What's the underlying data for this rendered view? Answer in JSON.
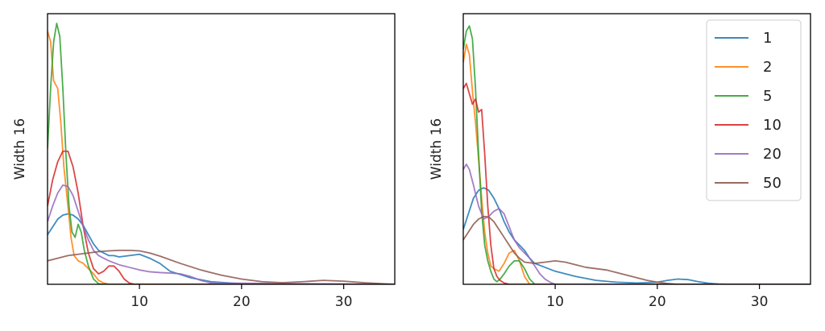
{
  "chart_data": [
    {
      "type": "line",
      "ylabel": "Width 16",
      "xlim": [
        1,
        35
      ],
      "ylim": [
        0,
        1.0
      ],
      "xticks": [
        10,
        20,
        30
      ],
      "xtick_labels": [
        "10",
        "20",
        "30"
      ],
      "yticks_shown": false,
      "legend": false,
      "series": [
        {
          "name": "1",
          "color": "#1f77b4",
          "x": [
            1,
            1.5,
            2,
            2.5,
            3,
            3.5,
            4,
            4.5,
            5,
            5.5,
            6,
            6.5,
            7,
            7.5,
            8,
            9,
            10,
            11,
            12,
            13,
            15,
            17,
            20,
            25,
            30,
            35
          ],
          "y": [
            0.19,
            0.22,
            0.25,
            0.265,
            0.27,
            0.265,
            0.25,
            0.225,
            0.19,
            0.155,
            0.13,
            0.12,
            0.11,
            0.11,
            0.105,
            0.11,
            0.115,
            0.1,
            0.08,
            0.05,
            0.025,
            0.01,
            0.002,
            0,
            0,
            0
          ]
        },
        {
          "name": "2",
          "color": "#ff7f0e",
          "x": [
            1,
            1.3,
            1.6,
            2,
            2.3,
            2.6,
            3,
            3.3,
            3.6,
            4,
            4.5,
            5,
            5.5,
            6,
            6.5,
            7,
            8,
            35
          ],
          "y": [
            0.97,
            0.93,
            0.78,
            0.75,
            0.62,
            0.45,
            0.3,
            0.18,
            0.11,
            0.09,
            0.08,
            0.06,
            0.04,
            0.015,
            0.005,
            0,
            0,
            0
          ]
        },
        {
          "name": "5",
          "color": "#2ca02c",
          "x": [
            1,
            1.3,
            1.6,
            1.9,
            2.2,
            2.5,
            2.8,
            3.1,
            3.4,
            3.7,
            4,
            4.3,
            4.6,
            5,
            5.5,
            6,
            6.5,
            35
          ],
          "y": [
            0.52,
            0.75,
            0.93,
            1.0,
            0.95,
            0.75,
            0.5,
            0.3,
            0.2,
            0.18,
            0.23,
            0.2,
            0.13,
            0.07,
            0.02,
            0.002,
            0,
            0
          ]
        },
        {
          "name": "10",
          "color": "#d62728",
          "x": [
            1,
            1.5,
            2,
            2.5,
            3,
            3.5,
            4,
            4.5,
            5,
            5.5,
            6,
            6.5,
            7,
            7.5,
            8,
            8.5,
            9,
            9.5,
            35
          ],
          "y": [
            0.3,
            0.4,
            0.47,
            0.51,
            0.51,
            0.45,
            0.35,
            0.22,
            0.12,
            0.06,
            0.04,
            0.05,
            0.07,
            0.07,
            0.05,
            0.02,
            0.005,
            0,
            0
          ]
        },
        {
          "name": "20",
          "color": "#9467bd",
          "x": [
            1,
            1.5,
            2,
            2.5,
            3,
            3.5,
            4,
            4.5,
            5,
            5.5,
            6,
            7,
            8,
            9,
            10,
            11,
            12,
            13,
            14,
            15,
            16,
            17,
            35
          ],
          "y": [
            0.24,
            0.3,
            0.35,
            0.38,
            0.375,
            0.34,
            0.28,
            0.22,
            0.17,
            0.13,
            0.11,
            0.09,
            0.075,
            0.065,
            0.055,
            0.048,
            0.045,
            0.043,
            0.04,
            0.03,
            0.015,
            0.005,
            0
          ]
        },
        {
          "name": "50",
          "color": "#8c564b",
          "x": [
            1,
            2,
            3,
            4,
            5,
            6,
            7,
            8,
            9,
            10,
            11,
            12,
            14,
            16,
            18,
            20,
            22,
            24,
            26,
            28,
            30,
            32,
            34,
            35
          ],
          "y": [
            0.09,
            0.1,
            0.11,
            0.115,
            0.12,
            0.125,
            0.128,
            0.13,
            0.13,
            0.128,
            0.12,
            0.108,
            0.08,
            0.055,
            0.035,
            0.02,
            0.01,
            0.006,
            0.01,
            0.015,
            0.012,
            0.006,
            0.002,
            0
          ]
        }
      ]
    },
    {
      "type": "line",
      "ylabel": "Width 16",
      "xlim": [
        1,
        35
      ],
      "ylim": [
        0,
        1.0
      ],
      "xticks": [
        10,
        20,
        30
      ],
      "xtick_labels": [
        "10",
        "20",
        "30"
      ],
      "yticks_shown": false,
      "legend": true,
      "legend_position": "top-right",
      "series": [
        {
          "name": "1",
          "color": "#1f77b4",
          "x": [
            1,
            1.5,
            2,
            2.5,
            3,
            3.5,
            4,
            4.5,
            5,
            5.5,
            6,
            6.5,
            7,
            7.5,
            8,
            9,
            10,
            11,
            12,
            14,
            16,
            18,
            20,
            21,
            22,
            23,
            24,
            25,
            26,
            27,
            28,
            35
          ],
          "y": [
            0.21,
            0.27,
            0.33,
            0.36,
            0.37,
            0.36,
            0.33,
            0.29,
            0.24,
            0.2,
            0.17,
            0.15,
            0.13,
            0.1,
            0.08,
            0.065,
            0.05,
            0.04,
            0.03,
            0.015,
            0.008,
            0.005,
            0.008,
            0.015,
            0.02,
            0.018,
            0.01,
            0.004,
            0.001,
            0,
            0,
            0
          ]
        },
        {
          "name": "2",
          "color": "#ff7f0e",
          "x": [
            1,
            1.3,
            1.6,
            1.9,
            2.2,
            2.5,
            2.8,
            3.1,
            3.4,
            3.7,
            4,
            4.5,
            5,
            5.5,
            6,
            6.5,
            7,
            7.5,
            35
          ],
          "y": [
            0.85,
            0.92,
            0.88,
            0.74,
            0.62,
            0.48,
            0.33,
            0.2,
            0.12,
            0.07,
            0.06,
            0.05,
            0.08,
            0.12,
            0.13,
            0.09,
            0.03,
            0,
            0
          ]
        },
        {
          "name": "5",
          "color": "#2ca02c",
          "x": [
            1,
            1.3,
            1.6,
            1.9,
            2.2,
            2.5,
            2.8,
            3.1,
            3.4,
            3.7,
            4,
            4.3,
            4.6,
            5,
            5.5,
            6,
            6.5,
            7,
            7.5,
            8,
            35
          ],
          "y": [
            0.9,
            0.97,
            0.99,
            0.94,
            0.75,
            0.5,
            0.28,
            0.15,
            0.09,
            0.05,
            0.02,
            0.01,
            0.02,
            0.04,
            0.07,
            0.09,
            0.09,
            0.06,
            0.02,
            0,
            0
          ]
        },
        {
          "name": "10",
          "color": "#d62728",
          "x": [
            1,
            1.3,
            1.6,
            1.9,
            2.2,
            2.5,
            2.8,
            3.1,
            3.4,
            3.7,
            4,
            4.3,
            4.6,
            5,
            5.5,
            6,
            35
          ],
          "y": [
            0.75,
            0.77,
            0.73,
            0.69,
            0.71,
            0.66,
            0.67,
            0.5,
            0.3,
            0.15,
            0.06,
            0.03,
            0.015,
            0.005,
            0,
            0,
            0
          ]
        },
        {
          "name": "20",
          "color": "#9467bd",
          "x": [
            1,
            1.3,
            1.6,
            2,
            2.5,
            3,
            3.5,
            4,
            4.5,
            5,
            5.5,
            6,
            6.5,
            7,
            7.5,
            8,
            8.5,
            9,
            9.5,
            10,
            35
          ],
          "y": [
            0.44,
            0.46,
            0.44,
            0.38,
            0.3,
            0.25,
            0.26,
            0.28,
            0.29,
            0.27,
            0.22,
            0.17,
            0.14,
            0.12,
            0.1,
            0.07,
            0.04,
            0.02,
            0.008,
            0,
            0
          ]
        },
        {
          "name": "50",
          "color": "#8c564b",
          "x": [
            1,
            1.5,
            2,
            2.5,
            3,
            3.5,
            4,
            4.5,
            5,
            5.5,
            6,
            6.5,
            7,
            8,
            9,
            10,
            11,
            12,
            13,
            14,
            15,
            16,
            17,
            18,
            19,
            20,
            21,
            22,
            35
          ],
          "y": [
            0.17,
            0.2,
            0.23,
            0.25,
            0.26,
            0.258,
            0.24,
            0.21,
            0.18,
            0.15,
            0.12,
            0.1,
            0.085,
            0.08,
            0.085,
            0.09,
            0.085,
            0.075,
            0.065,
            0.06,
            0.055,
            0.045,
            0.035,
            0.025,
            0.015,
            0.008,
            0.003,
            0,
            0
          ]
        }
      ]
    }
  ]
}
